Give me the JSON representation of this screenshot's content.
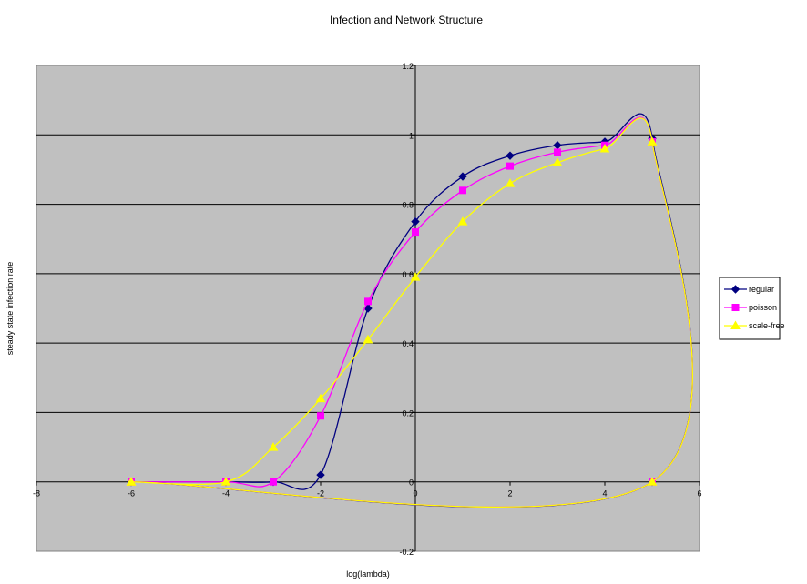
{
  "chart_data": {
    "type": "scatter",
    "title": "Infection and Network Structure",
    "xlabel": "log(lambda)",
    "ylabel": "steady state infection rate",
    "xlim": [
      -8,
      6
    ],
    "ylim": [
      -0.2,
      1.2
    ],
    "x_ticks": [
      "-8",
      "-6",
      "-4",
      "-2",
      "0",
      "2",
      "4",
      "6"
    ],
    "y_ticks": [
      "-0.2",
      "0",
      "0.2",
      "0.4",
      "0.6",
      "0.8",
      "1",
      "1.2"
    ],
    "grid": "horizontal",
    "plot_background": "#c0c0c0",
    "legend_position": "right",
    "series": [
      {
        "name": "regular",
        "color": "#000080",
        "marker": "diamond",
        "x": [
          -6,
          -4,
          -3,
          -2,
          -1,
          0,
          1,
          2,
          3,
          4,
          5,
          5,
          -6
        ],
        "y": [
          0,
          0,
          0,
          0.02,
          0.5,
          0.75,
          0.88,
          0.94,
          0.97,
          0.98,
          0.99,
          0,
          0
        ]
      },
      {
        "name": "poisson",
        "color": "#ff00ff",
        "marker": "square",
        "x": [
          -6,
          -4,
          -3,
          -2,
          -1,
          0,
          1,
          2,
          3,
          4,
          5,
          5,
          -6
        ],
        "y": [
          0,
          0,
          0,
          0.19,
          0.52,
          0.72,
          0.84,
          0.91,
          0.95,
          0.97,
          0.98,
          0,
          0
        ]
      },
      {
        "name": "scale-free",
        "color": "#ffff00",
        "marker": "triangle",
        "x": [
          -6,
          -4,
          -3,
          -2,
          -1,
          0,
          1,
          2,
          3,
          4,
          5,
          5,
          -6
        ],
        "y": [
          0,
          0,
          0.1,
          0.24,
          0.41,
          0.59,
          0.75,
          0.86,
          0.92,
          0.96,
          0.98,
          0,
          0
        ]
      }
    ]
  }
}
